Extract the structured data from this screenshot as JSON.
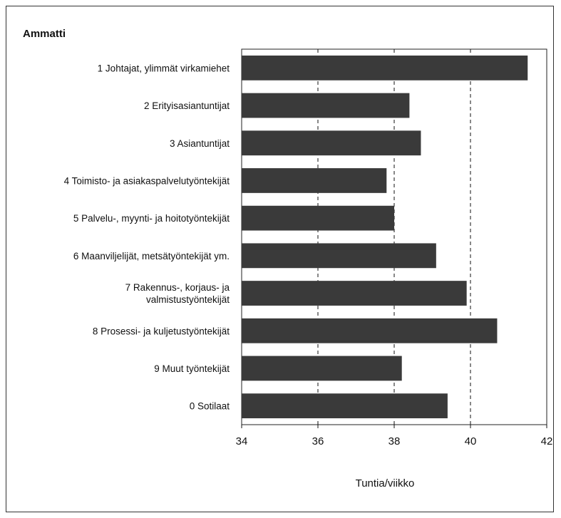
{
  "chart_data": {
    "type": "bar",
    "orientation": "horizontal",
    "title": "Ammatti",
    "xlabel": "Tuntia/viikko",
    "xlim": [
      34,
      42
    ],
    "xticks": [
      "34",
      "36",
      "38",
      "40",
      "42"
    ],
    "gridlines": "dashed vertical at 36, 38, 40",
    "categories": [
      [
        "1 Johtajat, ylimmät virkamiehet"
      ],
      [
        "2 Erityisasiantuntijat"
      ],
      [
        "3 Asiantuntijat"
      ],
      [
        "4 Toimisto- ja asiakaspalvelutyöntekijät"
      ],
      [
        "5 Palvelu-, myynti- ja hoitotyöntekijät"
      ],
      [
        "6 Maanviljelijät, metsätyöntekijät ym."
      ],
      [
        "7 Rakennus-, korjaus- ja",
        "valmistustyöntekijät"
      ],
      [
        "8 Prosessi- ja kuljetustyöntekijät"
      ],
      [
        "9 Muut työntekijät"
      ],
      [
        "0 Sotilaat"
      ]
    ],
    "values": [
      41.5,
      38.4,
      38.7,
      37.8,
      38.0,
      39.1,
      39.9,
      40.7,
      38.2,
      39.4
    ],
    "bar_color": "#3a3a3a"
  }
}
